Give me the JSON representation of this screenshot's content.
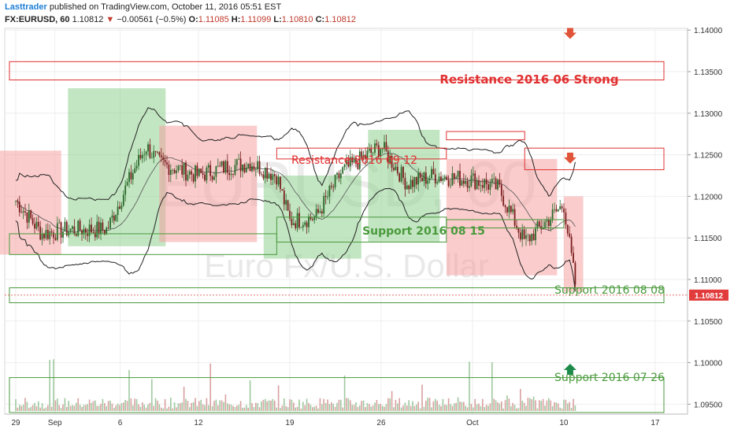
{
  "header": {
    "author": "Lasttrader",
    "published_text": "published on TradingView.com, October 11, 2016 05:51 EST",
    "symbol": "FX:EURUSD, 60",
    "last": "1.10812",
    "change_arrow": "▼",
    "change": "−0.00561 (−0.5%)",
    "o_label": "O:",
    "o_value": "1.11085",
    "h_label": "H:",
    "h_value": "1.11099",
    "l_label": "L:",
    "l_value": "1.10810",
    "c_label": "C:",
    "c_value": "1.10812"
  },
  "watermark": {
    "symbol": "EURUSD, 60",
    "name": "Euro Fx/U.S. Dollar"
  },
  "price_tag": "1.10812",
  "colors": {
    "resistance": "#e03030",
    "support": "#4a9a3c",
    "bull_zone": "#8fcf8f",
    "bear_zone": "#f5a3a3",
    "price_tag_bg": "#e23b3b",
    "candle_up": "#2a6a2a",
    "candle_down": "#7a1e1e"
  },
  "chart_data": {
    "type": "line",
    "title": "",
    "xlabel": "",
    "ylabel": "",
    "ylim": [
      1.092,
      1.142
    ],
    "y_ticks": [
      1.095,
      1.1,
      1.105,
      1.11,
      1.115,
      1.12,
      1.125,
      1.13,
      1.135,
      1.14
    ],
    "y_tick_labels": [
      "1.09500",
      "1.10000",
      "1.10500",
      "1.11000",
      "1.11500",
      "1.12000",
      "1.12500",
      "1.13000",
      "1.13500",
      "1.14000"
    ],
    "x_ticks": [
      "29",
      "Sep",
      "6",
      "12",
      "19",
      "26",
      "Oct",
      "10",
      "17"
    ],
    "x_ticks_xlim_note": "",
    "grid": true,
    "close_series": {
      "name": "",
      "x": [
        "Aug 29",
        "Aug 31",
        "Sep 2",
        "Sep 5",
        "Sep 7",
        "Sep 8",
        "Sep 9",
        "Sep 12",
        "Sep 14",
        "Sep 16",
        "Sep 18",
        "Sep 19",
        "Sep 21",
        "Sep 23",
        "Sep 26",
        "Sep 28",
        "Sep 30",
        "Oct 3",
        "Oct 5",
        "Oct 7",
        "Oct 10",
        "Oct 11"
      ],
      "values": [
        1.1195,
        1.1155,
        1.116,
        1.116,
        1.123,
        1.126,
        1.124,
        1.1225,
        1.1235,
        1.124,
        1.1225,
        1.117,
        1.1175,
        1.123,
        1.126,
        1.1215,
        1.1225,
        1.122,
        1.121,
        1.1145,
        1.119,
        1.1081
      ]
    },
    "zones": [
      {
        "kind": "bear",
        "from": "Aug 26",
        "to": "Sep 1",
        "low": 1.113,
        "high": 1.1255
      },
      {
        "kind": "bull",
        "from": "Sep 2",
        "to": "Sep 9",
        "low": 1.114,
        "high": 1.133
      },
      {
        "kind": "bear",
        "from": "Sep 9",
        "to": "Sep 16",
        "low": 1.1145,
        "high": 1.1285
      },
      {
        "kind": "bull",
        "from": "Sep 17",
        "to": "Sep 24",
        "low": 1.1125,
        "high": 1.1225
      },
      {
        "kind": "bull",
        "from": "Sep 25",
        "to": "Sep 30",
        "low": 1.1145,
        "high": 1.128
      },
      {
        "kind": "bear",
        "from": "Oct 1",
        "to": "Oct 9",
        "low": 1.1105,
        "high": 1.1245
      },
      {
        "kind": "bear",
        "from": "Oct 10",
        "to": "Oct 11",
        "low": 1.1085,
        "high": 1.12
      }
    ],
    "levels": [
      {
        "label": "Resistance 2016 06 Strong",
        "kind": "resistance",
        "low": 1.134,
        "high": 1.1362,
        "from": "Aug 26",
        "to": "Oct 16"
      },
      {
        "label": "Resistance 2016 09 12",
        "kind": "resistance",
        "low": 1.1245,
        "high": 1.1258,
        "from": "Sep 18",
        "to": "Oct 1"
      },
      {
        "label": "",
        "kind": "resistance",
        "low": 1.1268,
        "high": 1.1278,
        "from": "Oct 1",
        "to": "Oct 7"
      },
      {
        "label": "",
        "kind": "resistance",
        "low": 1.1232,
        "high": 1.1258,
        "from": "Oct 7",
        "to": "Oct 16"
      },
      {
        "label": "Support 2016 08 15",
        "kind": "support",
        "low": 1.1145,
        "high": 1.1175,
        "from": "Sep 18",
        "to": "Oct 1"
      },
      {
        "label": "",
        "kind": "support",
        "low": 1.113,
        "high": 1.1155,
        "from": "Aug 26",
        "to": "Sep 18"
      },
      {
        "label": "",
        "kind": "support",
        "low": 1.1162,
        "high": 1.1172,
        "from": "Oct 1",
        "to": "Oct 10"
      },
      {
        "label": "Support 2016 08 08",
        "kind": "support",
        "low": 1.1072,
        "high": 1.109,
        "from": "Aug 26",
        "to": "Oct 16"
      },
      {
        "label": "Support 2016 07 26",
        "kind": "support",
        "low": 1.094,
        "high": 1.0982,
        "from": "Aug 26",
        "to": "Oct 16"
      }
    ],
    "markers": [
      {
        "kind": "down-arrow",
        "at": "Oct 10",
        "price": 1.1395
      },
      {
        "kind": "down-arrow",
        "at": "Oct 10",
        "price": 1.1245
      },
      {
        "kind": "up-arrow",
        "at": "Oct 10",
        "price": 1.0993
      }
    ]
  }
}
